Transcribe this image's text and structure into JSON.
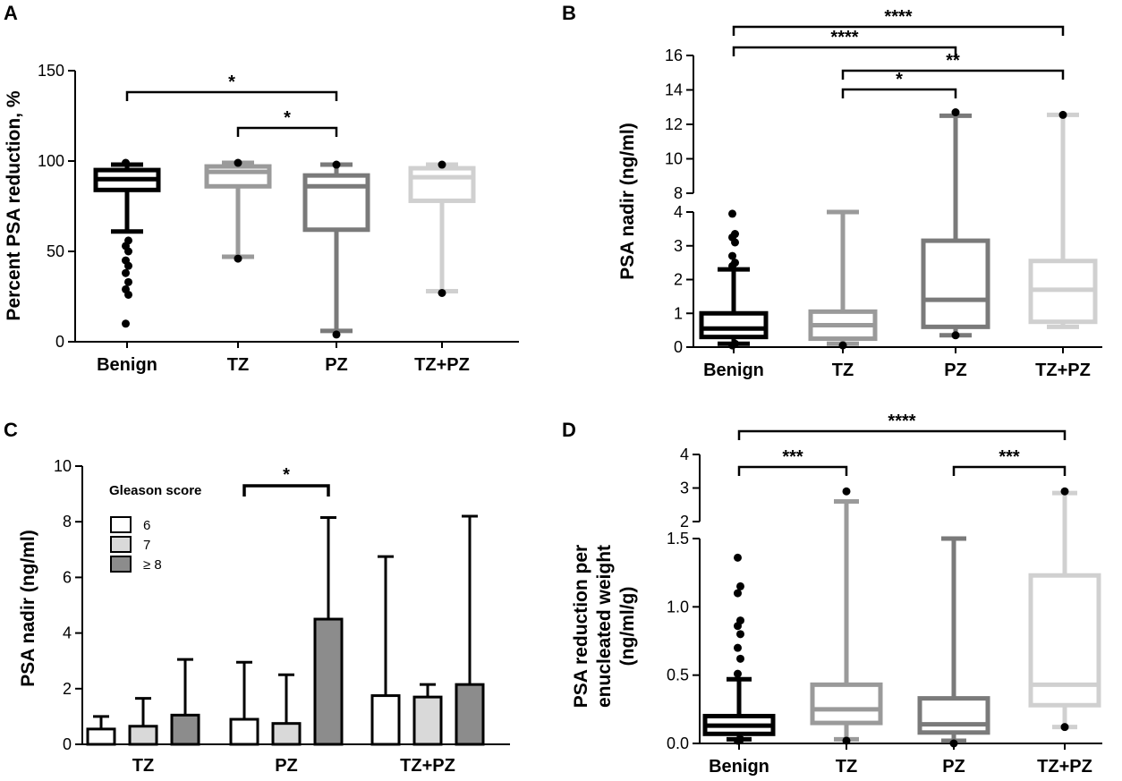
{
  "chart_data": [
    {
      "panel": "A",
      "type": "boxplot",
      "ylabel": "Percent PSA reduction, %",
      "ylim": [
        0,
        150
      ],
      "yticks": [
        "0",
        "50",
        "100",
        "150"
      ],
      "categories": [
        "Benign",
        "TZ",
        "PZ",
        "TZ+PZ"
      ],
      "colors": [
        "#000000",
        "#9a9a9a",
        "#7a7a7a",
        "#d0d0d0"
      ],
      "boxes": [
        {
          "whisker_low": 61,
          "q1": 84,
          "median": 90,
          "q3": 95,
          "whisker_high": 98,
          "outliers": [
            99,
            56,
            53,
            50,
            45,
            42,
            38,
            33,
            29,
            26,
            10
          ]
        },
        {
          "whisker_low": 47,
          "q1": 86,
          "median": 94,
          "q3": 97,
          "whisker_high": 99,
          "outliers": [
            99,
            46
          ]
        },
        {
          "whisker_low": 6,
          "q1": 62,
          "median": 86,
          "q3": 92,
          "whisker_high": 98,
          "outliers": [
            98,
            4
          ]
        },
        {
          "whisker_low": 28,
          "q1": 78,
          "median": 91,
          "q3": 96,
          "whisker_high": 98,
          "outliers": [
            98,
            27
          ]
        }
      ],
      "significance": [
        {
          "from": "Benign",
          "to": "PZ",
          "label": "*"
        },
        {
          "from": "TZ",
          "to": "PZ",
          "label": "*"
        }
      ]
    },
    {
      "panel": "B",
      "type": "boxplot",
      "ylabel": "PSA nadir (ng/ml)",
      "axis_break": true,
      "ylim_lower": [
        0,
        4
      ],
      "ylim_upper": [
        8,
        16
      ],
      "yticks_lower": [
        "0",
        "1",
        "2",
        "3",
        "4"
      ],
      "yticks_upper": [
        "8",
        "10",
        "12",
        "14",
        "16"
      ],
      "categories": [
        "Benign",
        "TZ",
        "PZ",
        "TZ+PZ"
      ],
      "colors": [
        "#000000",
        "#9a9a9a",
        "#7a7a7a",
        "#d0d0d0"
      ],
      "boxes": [
        {
          "whisker_low": 0.1,
          "q1": 0.3,
          "median": 0.55,
          "q3": 1.0,
          "whisker_high": 2.3,
          "outliers": [
            0.05,
            0.1,
            2.4,
            2.5,
            2.7,
            3.1,
            3.25,
            3.35,
            3.95
          ]
        },
        {
          "whisker_low": 0.1,
          "q1": 0.25,
          "median": 0.65,
          "q3": 1.05,
          "whisker_high": 4.0,
          "outliers": [
            0.05
          ]
        },
        {
          "whisker_low": 0.35,
          "q1": 0.6,
          "median": 1.4,
          "q3": 3.15,
          "whisker_high": 12.5,
          "outliers": [
            0.35,
            12.7
          ]
        },
        {
          "whisker_low": 0.6,
          "q1": 0.75,
          "median": 1.7,
          "q3": 2.55,
          "whisker_high": 12.55,
          "outliers": [
            12.55
          ]
        }
      ],
      "significance": [
        {
          "from": "Benign",
          "to": "TZ+PZ",
          "label": "****"
        },
        {
          "from": "Benign",
          "to": "PZ",
          "label": "****"
        },
        {
          "from": "TZ",
          "to": "TZ+PZ",
          "label": "**"
        },
        {
          "from": "TZ",
          "to": "PZ",
          "label": "*"
        }
      ]
    },
    {
      "panel": "C",
      "type": "bar",
      "ylabel": "PSA nadir (ng/ml)",
      "ylim": [
        0,
        10
      ],
      "yticks": [
        "0",
        "2",
        "4",
        "6",
        "8",
        "10"
      ],
      "categories": [
        "TZ",
        "PZ",
        "TZ+PZ"
      ],
      "legend_title": "Gleason score",
      "series": [
        {
          "name": "6",
          "color": "#ffffff",
          "values": [
            0.55,
            0.9,
            1.75
          ],
          "err_low": [
            0.2,
            0.1,
            0.8
          ],
          "err_high": [
            1.0,
            2.95,
            6.75
          ]
        },
        {
          "name": "7",
          "color": "#d9d9d9",
          "values": [
            0.65,
            0.75,
            1.7
          ],
          "err_low": [
            0.1,
            0.1,
            1.2
          ],
          "err_high": [
            1.65,
            2.5,
            2.15
          ]
        },
        {
          "name": "≥ 8",
          "color": "#8c8c8c",
          "values": [
            1.05,
            4.5,
            2.15
          ],
          "err_low": [
            0.4,
            3.0,
            1.2
          ],
          "err_high": [
            3.05,
            8.15,
            8.2
          ]
        }
      ],
      "significance": [
        {
          "label": "*",
          "group": "PZ",
          "from_series": "6",
          "to_series": "≥ 8"
        }
      ]
    },
    {
      "panel": "D",
      "type": "boxplot",
      "ylabel": "PSA reduction per enucleated weight (ng/ml/g)",
      "ylabel_lines": [
        "PSA reduction per",
        "enucleated weight",
        "(ng/ml/g)"
      ],
      "axis_break": true,
      "ylim_lower": [
        0,
        1.5
      ],
      "ylim_upper": [
        2,
        4
      ],
      "yticks_lower": [
        "0.0",
        "0.5",
        "1.0",
        "1.5"
      ],
      "yticks_upper": [
        "2",
        "3",
        "4"
      ],
      "categories": [
        "Benign",
        "TZ",
        "PZ",
        "TZ+PZ"
      ],
      "colors": [
        "#000000",
        "#9a9a9a",
        "#7a7a7a",
        "#d0d0d0"
      ],
      "boxes": [
        {
          "whisker_low": 0.03,
          "q1": 0.07,
          "median": 0.13,
          "q3": 0.2,
          "whisker_high": 0.47,
          "outliers": [
            0.02,
            0.03,
            0.51,
            0.62,
            0.7,
            0.8,
            0.86,
            0.9,
            1.1,
            1.15,
            1.36
          ]
        },
        {
          "whisker_low": 0.03,
          "q1": 0.15,
          "median": 0.25,
          "q3": 0.43,
          "whisker_high": 2.6,
          "outliers": [
            0.02,
            2.9
          ]
        },
        {
          "whisker_low": 0.02,
          "q1": 0.08,
          "median": 0.14,
          "q3": 0.33,
          "whisker_high": 1.5,
          "outliers": [
            0.0
          ]
        },
        {
          "whisker_low": 0.12,
          "q1": 0.28,
          "median": 0.43,
          "q3": 1.23,
          "whisker_high": 2.85,
          "outliers": [
            0.12,
            2.9
          ]
        }
      ],
      "significance": [
        {
          "from": "Benign",
          "to": "TZ+PZ",
          "label": "****"
        },
        {
          "from": "Benign",
          "to": "TZ",
          "label": "***"
        },
        {
          "from": "PZ",
          "to": "TZ+PZ",
          "label": "***"
        }
      ]
    }
  ]
}
